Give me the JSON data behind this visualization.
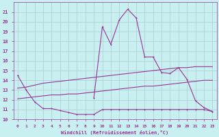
{
  "bg_color": "#c8f0f0",
  "grid_color": "#aacccc",
  "line_color": "#993399",
  "xlabel": "Windchill (Refroidissement éolien,°C)",
  "xlim": [
    -0.5,
    23.5
  ],
  "ylim": [
    10,
    22
  ],
  "xticks": [
    0,
    1,
    2,
    3,
    4,
    5,
    6,
    7,
    8,
    9,
    10,
    11,
    12,
    13,
    14,
    15,
    16,
    17,
    18,
    19,
    20,
    21,
    22,
    23
  ],
  "yticks": [
    10,
    11,
    12,
    13,
    14,
    15,
    16,
    17,
    18,
    19,
    20,
    21
  ],
  "series_low_x": [
    0,
    1,
    2,
    3,
    4,
    5,
    6,
    7,
    8,
    9,
    10,
    11,
    12,
    13,
    14,
    15,
    16,
    17,
    18,
    19,
    20,
    21,
    22,
    23
  ],
  "series_low_y": [
    14.5,
    13.0,
    11.8,
    11.1,
    11.1,
    10.9,
    10.7,
    10.5,
    10.5,
    10.5,
    11.0,
    11.0,
    11.0,
    11.0,
    11.0,
    11.0,
    11.0,
    11.0,
    11.0,
    11.0,
    11.0,
    11.0,
    11.0,
    10.8
  ],
  "series_mid_x": [
    0,
    1,
    2,
    3,
    4,
    5,
    6,
    7,
    8,
    9,
    10,
    11,
    12,
    13,
    14,
    15,
    16,
    17,
    18,
    19,
    20,
    21,
    22,
    23
  ],
  "series_mid_y": [
    12.1,
    12.2,
    12.3,
    12.4,
    12.5,
    12.5,
    12.6,
    12.6,
    12.7,
    12.8,
    12.9,
    13.0,
    13.1,
    13.2,
    13.3,
    13.4,
    13.4,
    13.5,
    13.6,
    13.7,
    13.8,
    13.9,
    14.0,
    14.0
  ],
  "series_top_x": [
    0,
    1,
    2,
    3,
    4,
    5,
    6,
    7,
    8,
    9,
    10,
    11,
    12,
    13,
    14,
    15,
    16,
    17,
    18,
    19,
    20,
    21,
    22,
    23
  ],
  "series_top_y": [
    13.2,
    13.3,
    13.5,
    13.7,
    13.8,
    13.9,
    14.0,
    14.1,
    14.2,
    14.3,
    14.4,
    14.5,
    14.6,
    14.7,
    14.8,
    14.9,
    15.0,
    15.1,
    15.2,
    15.3,
    15.3,
    15.4,
    15.4,
    15.4
  ],
  "series_peak_x": [
    9,
    10,
    11,
    12,
    13,
    14,
    15,
    16,
    17,
    18,
    19,
    20,
    21,
    22,
    23
  ],
  "series_peak_y": [
    12.2,
    19.5,
    17.7,
    20.2,
    21.3,
    20.4,
    16.4,
    16.4,
    14.8,
    14.7,
    15.3,
    14.1,
    11.9,
    11.2,
    10.8
  ]
}
